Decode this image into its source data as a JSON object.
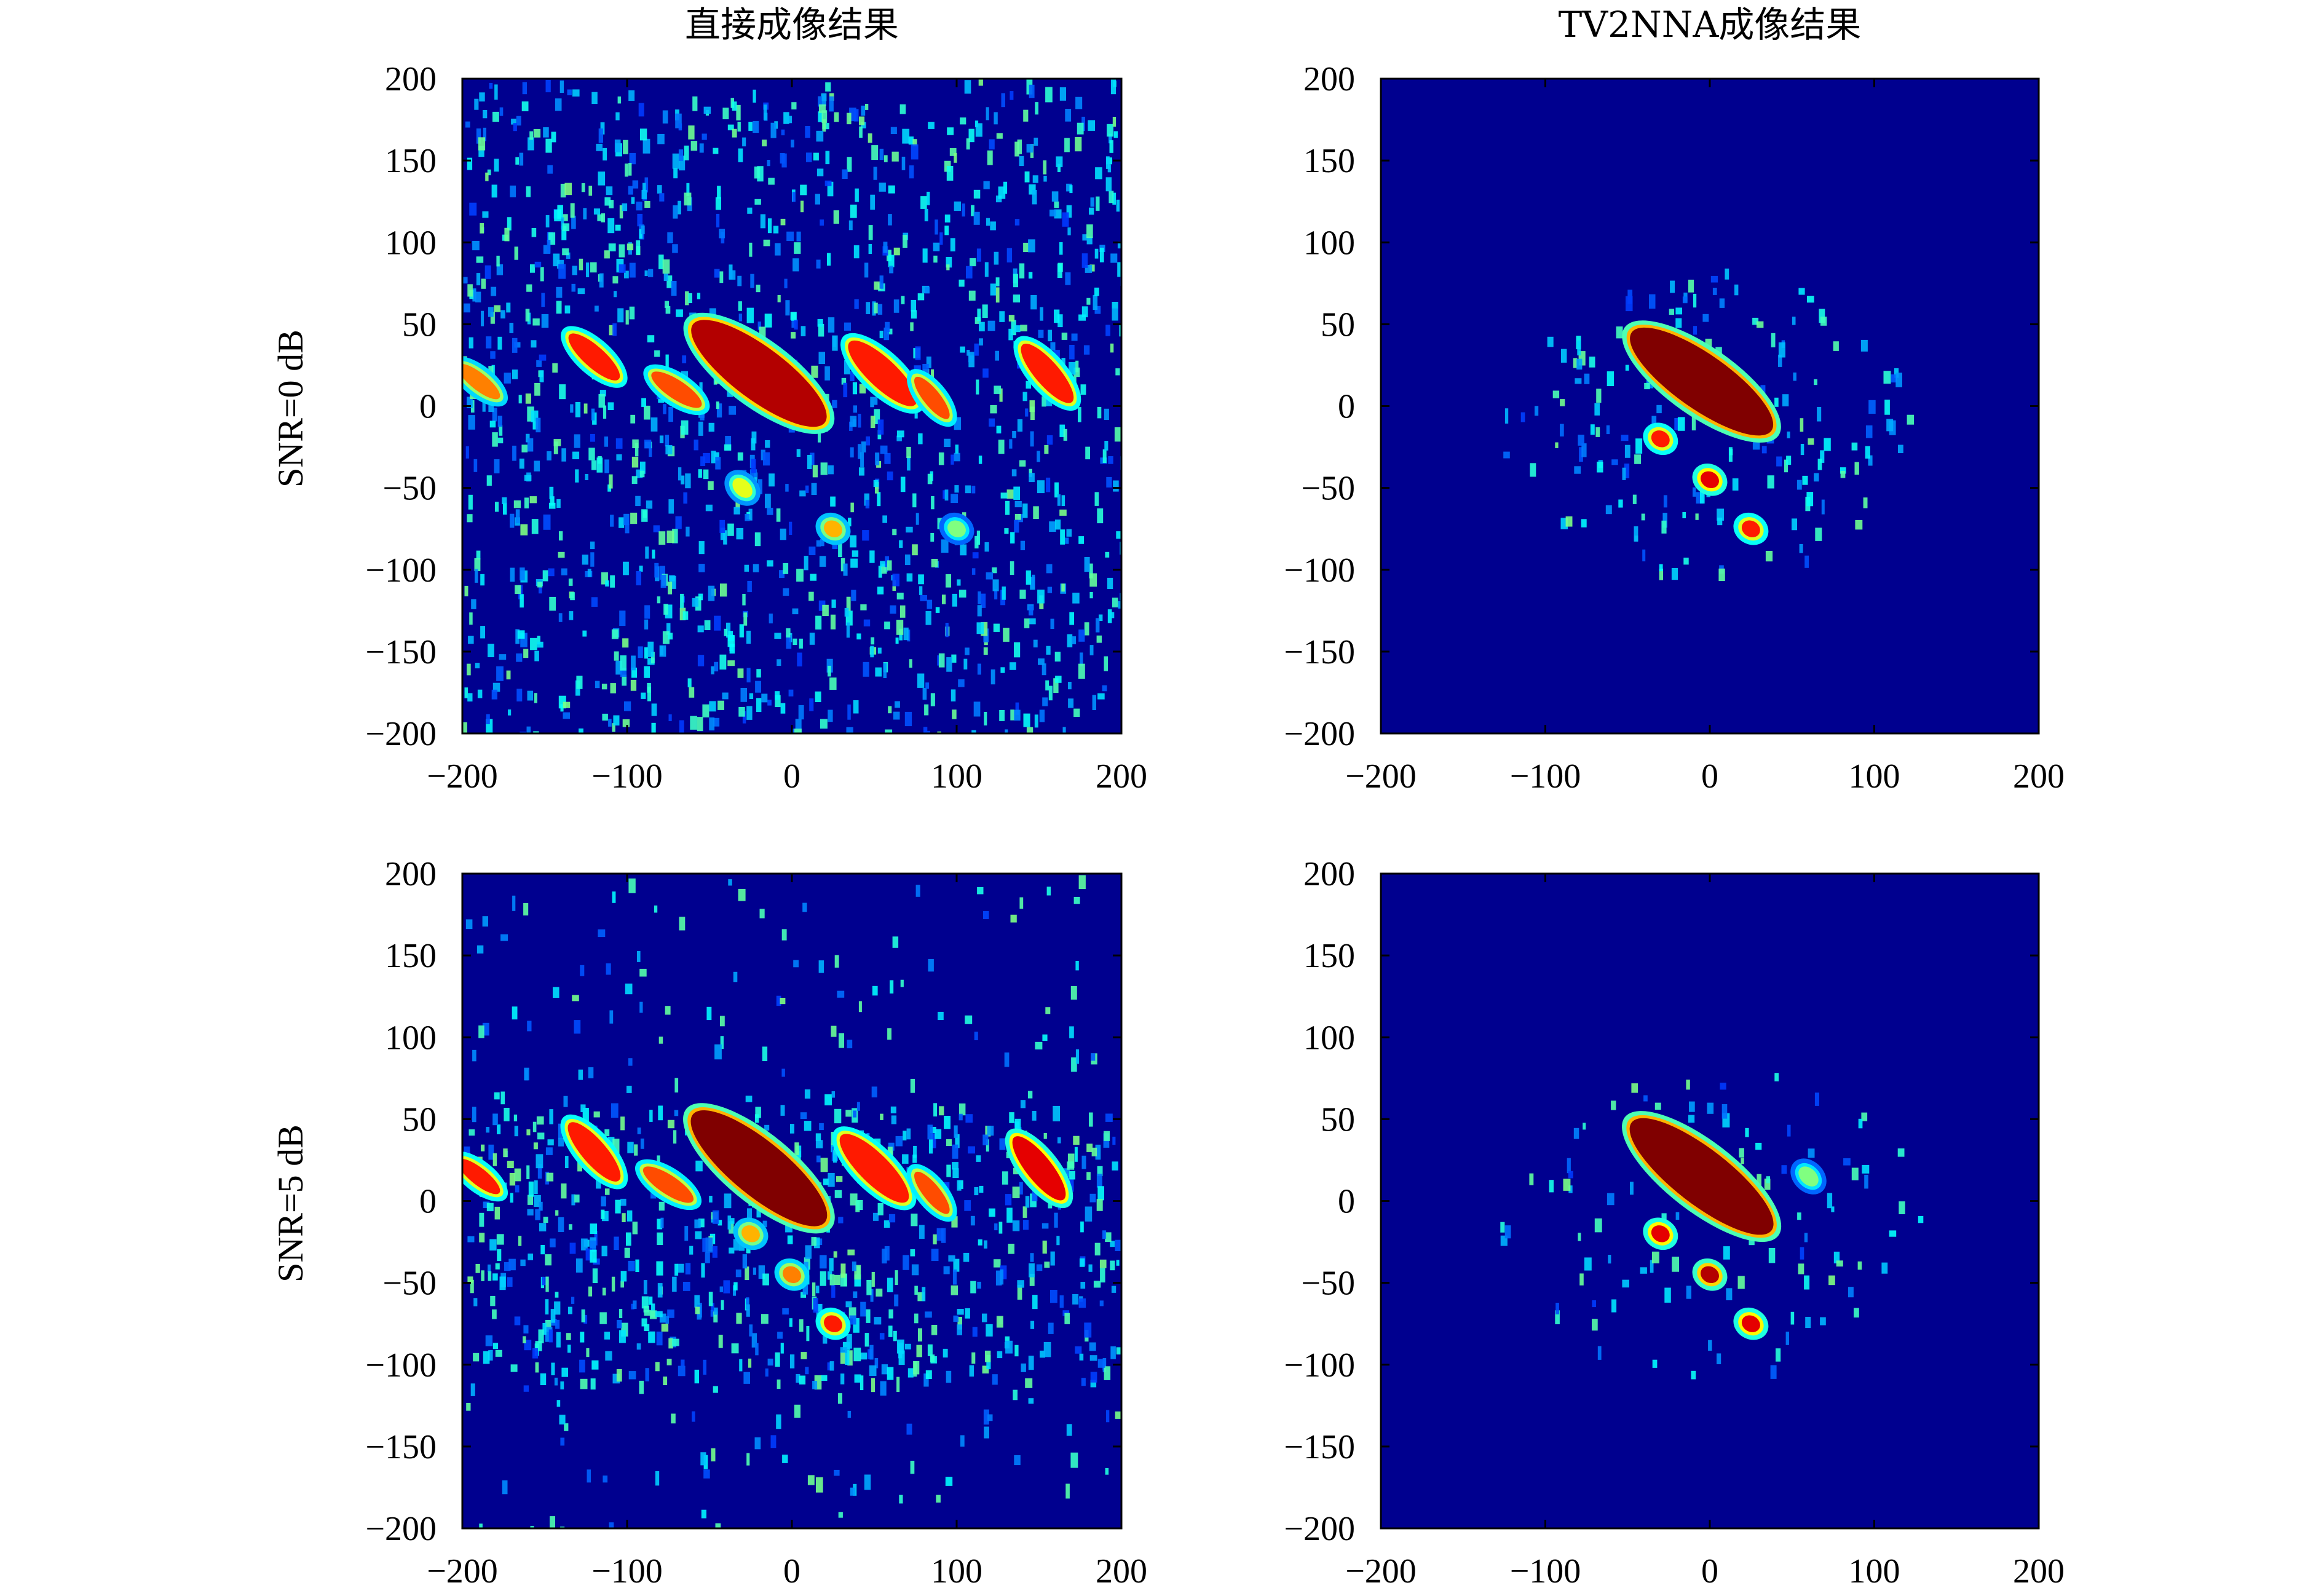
{
  "chart_data": [
    {
      "type": "heatmap",
      "title": "直接成像结果",
      "ylabel": "SNR=0 dB",
      "xlim": [
        -200,
        200
      ],
      "ylim": [
        -200,
        200
      ],
      "xticks": [
        "−200",
        "−100",
        "0",
        "100",
        "200"
      ],
      "yticks": [
        "200",
        "150",
        "100",
        "50",
        "0",
        "−50",
        "−100",
        "−150",
        "−200"
      ],
      "colormap": "jet",
      "background_color": "#00008f",
      "noise_level": "high",
      "hotspots": [
        {
          "x": -190,
          "y": 15,
          "x1": -200,
          "y1": 25,
          "x2": -175,
          "y2": 5,
          "intensity": 0.75
        },
        {
          "x": -120,
          "y": 30,
          "x1": -135,
          "y1": 42,
          "x2": -105,
          "y2": 15,
          "intensity": 0.85
        },
        {
          "x": -70,
          "y": 10,
          "x1": -85,
          "y1": 20,
          "x2": -55,
          "y2": 0,
          "intensity": 0.8
        },
        {
          "x": -20,
          "y": 20,
          "x1": -60,
          "y1": 45,
          "x2": 20,
          "y2": -15,
          "intensity": 0.95
        },
        {
          "x": 55,
          "y": 20,
          "x1": 35,
          "y1": 38,
          "x2": 75,
          "y2": 0,
          "intensity": 0.85
        },
        {
          "x": 85,
          "y": 5,
          "x1": 75,
          "y1": 15,
          "x2": 95,
          "y2": -10,
          "intensity": 0.8
        },
        {
          "x": 155,
          "y": 20,
          "x1": 140,
          "y1": 35,
          "x2": 170,
          "y2": 0,
          "intensity": 0.85
        },
        {
          "x": -30,
          "y": -50,
          "x1": -35,
          "y1": -45,
          "x2": -25,
          "y2": -55,
          "intensity": 0.6
        },
        {
          "x": 25,
          "y": -75,
          "x1": 20,
          "y1": -72,
          "x2": 30,
          "y2": -78,
          "intensity": 0.7
        },
        {
          "x": 100,
          "y": -75,
          "x1": 95,
          "y1": -72,
          "x2": 105,
          "y2": -78,
          "intensity": 0.5
        }
      ]
    },
    {
      "type": "heatmap",
      "title": "TV2NNA成像结果",
      "xlim": [
        -200,
        200
      ],
      "ylim": [
        -200,
        200
      ],
      "xticks": [
        "−200",
        "−100",
        "0",
        "100",
        "200"
      ],
      "yticks": [
        "200",
        "150",
        "100",
        "50",
        "0",
        "−50",
        "−100",
        "−150",
        "−200"
      ],
      "colormap": "jet",
      "background_color": "#00008f",
      "noise_level": "low",
      "hotspots": [
        {
          "x": -5,
          "y": 15,
          "x1": -55,
          "y1": 45,
          "x2": 30,
          "y2": -15,
          "intensity": 1.0
        },
        {
          "x": -30,
          "y": -20,
          "x1": -35,
          "y1": -17,
          "x2": -25,
          "y2": -23,
          "intensity": 0.85
        },
        {
          "x": 0,
          "y": -45,
          "x1": -5,
          "y1": -42,
          "x2": 5,
          "y2": -48,
          "intensity": 0.9
        },
        {
          "x": 25,
          "y": -75,
          "x1": 20,
          "y1": -72,
          "x2": 30,
          "y2": -78,
          "intensity": 0.85
        }
      ]
    },
    {
      "type": "heatmap",
      "ylabel": "SNR=5 dB",
      "xlim": [
        -200,
        200
      ],
      "ylim": [
        -200,
        200
      ],
      "xticks": [
        "−200",
        "−100",
        "0",
        "100",
        "200"
      ],
      "yticks": [
        "200",
        "150",
        "100",
        "50",
        "0",
        "−50",
        "−100",
        "−150",
        "−200"
      ],
      "colormap": "jet",
      "background_color": "#00008f",
      "noise_level": "medium",
      "hotspots": [
        {
          "x": -190,
          "y": 15,
          "x1": -200,
          "y1": 25,
          "x2": -175,
          "y2": 5,
          "intensity": 0.85
        },
        {
          "x": -120,
          "y": 30,
          "x1": -135,
          "y1": 45,
          "x2": -105,
          "y2": 10,
          "intensity": 0.85
        },
        {
          "x": -75,
          "y": 10,
          "x1": -90,
          "y1": 20,
          "x2": -60,
          "y2": 0,
          "intensity": 0.8
        },
        {
          "x": -20,
          "y": 20,
          "x1": -60,
          "y1": 48,
          "x2": 20,
          "y2": -18,
          "intensity": 1.0
        },
        {
          "x": 50,
          "y": 20,
          "x1": 30,
          "y1": 40,
          "x2": 70,
          "y2": 0,
          "intensity": 0.85
        },
        {
          "x": 85,
          "y": 5,
          "x1": 75,
          "y1": 15,
          "x2": 95,
          "y2": -10,
          "intensity": 0.8
        },
        {
          "x": 150,
          "y": 20,
          "x1": 135,
          "y1": 38,
          "x2": 165,
          "y2": 0,
          "intensity": 0.9
        },
        {
          "x": -25,
          "y": -20,
          "x1": -30,
          "y1": -17,
          "x2": -20,
          "y2": -23,
          "intensity": 0.7
        },
        {
          "x": 0,
          "y": -45,
          "x1": -5,
          "y1": -42,
          "x2": 5,
          "y2": -48,
          "intensity": 0.75
        },
        {
          "x": 25,
          "y": -75,
          "x1": 20,
          "y1": -72,
          "x2": 30,
          "y2": -78,
          "intensity": 0.85
        }
      ]
    },
    {
      "type": "heatmap",
      "xlim": [
        -200,
        200
      ],
      "ylim": [
        -200,
        200
      ],
      "xticks": [
        "−200",
        "−100",
        "0",
        "100",
        "200"
      ],
      "yticks": [
        "200",
        "150",
        "100",
        "50",
        "0",
        "−50",
        "−100",
        "−150",
        "−200"
      ],
      "colormap": "jet",
      "background_color": "#00008f",
      "noise_level": "very low",
      "hotspots": [
        {
          "x": -5,
          "y": 15,
          "x1": -55,
          "y1": 48,
          "x2": 30,
          "y2": -18,
          "intensity": 1.0
        },
        {
          "x": -30,
          "y": -20,
          "x1": -35,
          "y1": -17,
          "x2": -25,
          "y2": -23,
          "intensity": 0.9
        },
        {
          "x": 0,
          "y": -45,
          "x1": -5,
          "y1": -42,
          "x2": 5,
          "y2": -48,
          "intensity": 0.95
        },
        {
          "x": 25,
          "y": -75,
          "x1": 20,
          "y1": -72,
          "x2": 30,
          "y2": -78,
          "intensity": 0.9
        },
        {
          "x": 60,
          "y": 15,
          "x1": 55,
          "y1": 20,
          "x2": 65,
          "y2": 10,
          "intensity": 0.5
        }
      ]
    }
  ]
}
